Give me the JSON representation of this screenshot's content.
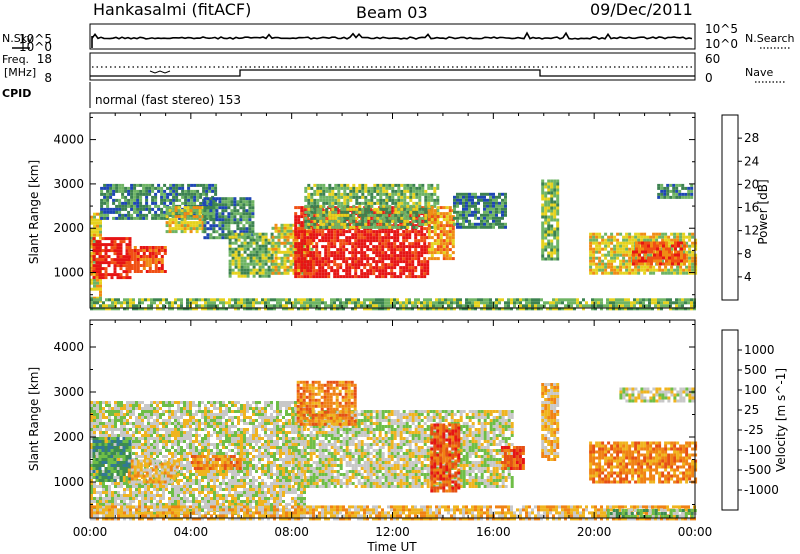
{
  "header": {
    "station": "Hankasalmi (fitACF)",
    "beam": "Beam 03",
    "date": "09/Dec/2011"
  },
  "mini_panels": {
    "nsky_label": "N.Sky",
    "nsearch_label": "N.Search",
    "noise_ticks": [
      "10^5",
      "10^0"
    ],
    "freq_label_1": "Freq.",
    "freq_label_2": "[MHz]",
    "freq_ticks": [
      "18",
      "8"
    ],
    "nave_label": "Nave",
    "nave_ticks": [
      "60",
      "0"
    ],
    "cpid_label": "CPID",
    "cpid_text": "normal (fast stereo) 153"
  },
  "chart_data": [
    {
      "type": "heatmap",
      "title": "",
      "xlabel": "Time UT",
      "ylabel": "Slant Range [km]",
      "x_ticks": [
        "00:00",
        "04:00",
        "08:00",
        "12:00",
        "16:00",
        "20:00",
        "00:00"
      ],
      "y_ticks": [
        1000,
        2000,
        3000,
        4000
      ],
      "ylim": [
        200,
        4600
      ],
      "xlim_hours": [
        0,
        24
      ],
      "colorbar": {
        "label": "Power [dB]",
        "ticks": [
          4,
          8,
          12,
          16,
          20,
          24,
          28
        ],
        "range": [
          0,
          32
        ],
        "colors": [
          "#0c1ee6",
          "#1e46b4",
          "#3c8250",
          "#6eb464",
          "#e6d21e",
          "#f08c14",
          "#f05014",
          "#e61414"
        ]
      },
      "regions": [
        {
          "t0": 0.0,
          "t1": 0.4,
          "r0": 350,
          "r1": 2350,
          "level": 4
        },
        {
          "t0": 0.1,
          "t1": 1.6,
          "r0": 900,
          "r1": 1800,
          "level": 7
        },
        {
          "t0": 1.5,
          "t1": 3.0,
          "r0": 1000,
          "r1": 1600,
          "level": 6
        },
        {
          "t0": 0.4,
          "t1": 5.0,
          "r0": 2200,
          "r1": 3000,
          "level": 2
        },
        {
          "t0": 3.0,
          "t1": 4.5,
          "r0": 1900,
          "r1": 2500,
          "level": 4
        },
        {
          "t0": 4.5,
          "t1": 6.5,
          "r0": 1800,
          "r1": 2700,
          "level": 2
        },
        {
          "t0": 5.5,
          "t1": 7.2,
          "r0": 900,
          "r1": 1900,
          "level": 3
        },
        {
          "t0": 7.2,
          "t1": 8.8,
          "r0": 1000,
          "r1": 2100,
          "level": 4
        },
        {
          "t0": 8.1,
          "t1": 13.4,
          "r0": 900,
          "r1": 2500,
          "level": 7
        },
        {
          "t0": 8.5,
          "t1": 13.8,
          "r0": 2000,
          "r1": 3000,
          "level": 3
        },
        {
          "t0": 13.4,
          "t1": 14.4,
          "r0": 1300,
          "r1": 2500,
          "level": 5
        },
        {
          "t0": 14.4,
          "t1": 16.5,
          "r0": 2000,
          "r1": 2800,
          "level": 2
        },
        {
          "t0": 17.9,
          "t1": 18.6,
          "r0": 1300,
          "r1": 3100,
          "level": 3
        },
        {
          "t0": 19.8,
          "t1": 24.0,
          "r0": 1000,
          "r1": 1900,
          "level": 4
        },
        {
          "t0": 21.5,
          "t1": 23.6,
          "r0": 1200,
          "r1": 1700,
          "level": 6
        },
        {
          "t0": 22.5,
          "t1": 23.9,
          "r0": 2700,
          "r1": 3000,
          "level": 2
        },
        {
          "t0": 0.0,
          "t1": 24.0,
          "r0": 200,
          "r1": 420,
          "level": 3
        }
      ]
    },
    {
      "type": "heatmap",
      "title": "",
      "xlabel": "Time UT",
      "ylabel": "Slant Range [km]",
      "x_ticks": [
        "00:00",
        "04:00",
        "08:00",
        "12:00",
        "16:00",
        "20:00",
        "00:00"
      ],
      "y_ticks": [
        1000,
        2000,
        3000,
        4000
      ],
      "ylim": [
        200,
        4600
      ],
      "xlim_hours": [
        0,
        24
      ],
      "colorbar": {
        "label": "Velocity [m s^-1]",
        "ticks": [
          "1000",
          "500",
          "100",
          "25",
          "-25",
          "-100",
          "-500",
          "-1000"
        ],
        "colors": [
          "#1e3cbe",
          "#327896",
          "#3c8c50",
          "#6ebe46",
          "#c8c8c8",
          "#f0b41e",
          "#f08214",
          "#e65014",
          "#e61414"
        ]
      },
      "regions": [
        {
          "t0": 0.0,
          "t1": 8.5,
          "r0": 300,
          "r1": 2800,
          "level": 4
        },
        {
          "t0": 0.1,
          "t1": 1.6,
          "r0": 1000,
          "r1": 2000,
          "level": 2
        },
        {
          "t0": 1.5,
          "t1": 3.5,
          "r0": 1000,
          "r1": 1500,
          "level": 5
        },
        {
          "t0": 4.0,
          "t1": 6.0,
          "r0": 1300,
          "r1": 1600,
          "level": 6
        },
        {
          "t0": 8.0,
          "t1": 16.8,
          "r0": 900,
          "r1": 2600,
          "level": 4
        },
        {
          "t0": 8.2,
          "t1": 10.5,
          "r0": 2300,
          "r1": 3250,
          "level": 6
        },
        {
          "t0": 13.5,
          "t1": 14.6,
          "r0": 800,
          "r1": 2300,
          "level": 7
        },
        {
          "t0": 16.3,
          "t1": 17.2,
          "r0": 1300,
          "r1": 1800,
          "level": 7
        },
        {
          "t0": 17.9,
          "t1": 18.6,
          "r0": 1500,
          "r1": 3200,
          "level": 5
        },
        {
          "t0": 19.8,
          "t1": 24.0,
          "r0": 1000,
          "r1": 1900,
          "level": 6
        },
        {
          "t0": 21.0,
          "t1": 23.9,
          "r0": 2800,
          "r1": 3100,
          "level": 4
        },
        {
          "t0": 0.0,
          "t1": 24.0,
          "r0": 200,
          "r1": 480,
          "level": 5
        },
        {
          "t0": 20.5,
          "t1": 24.0,
          "r0": 200,
          "r1": 400,
          "level": 3
        }
      ]
    }
  ]
}
